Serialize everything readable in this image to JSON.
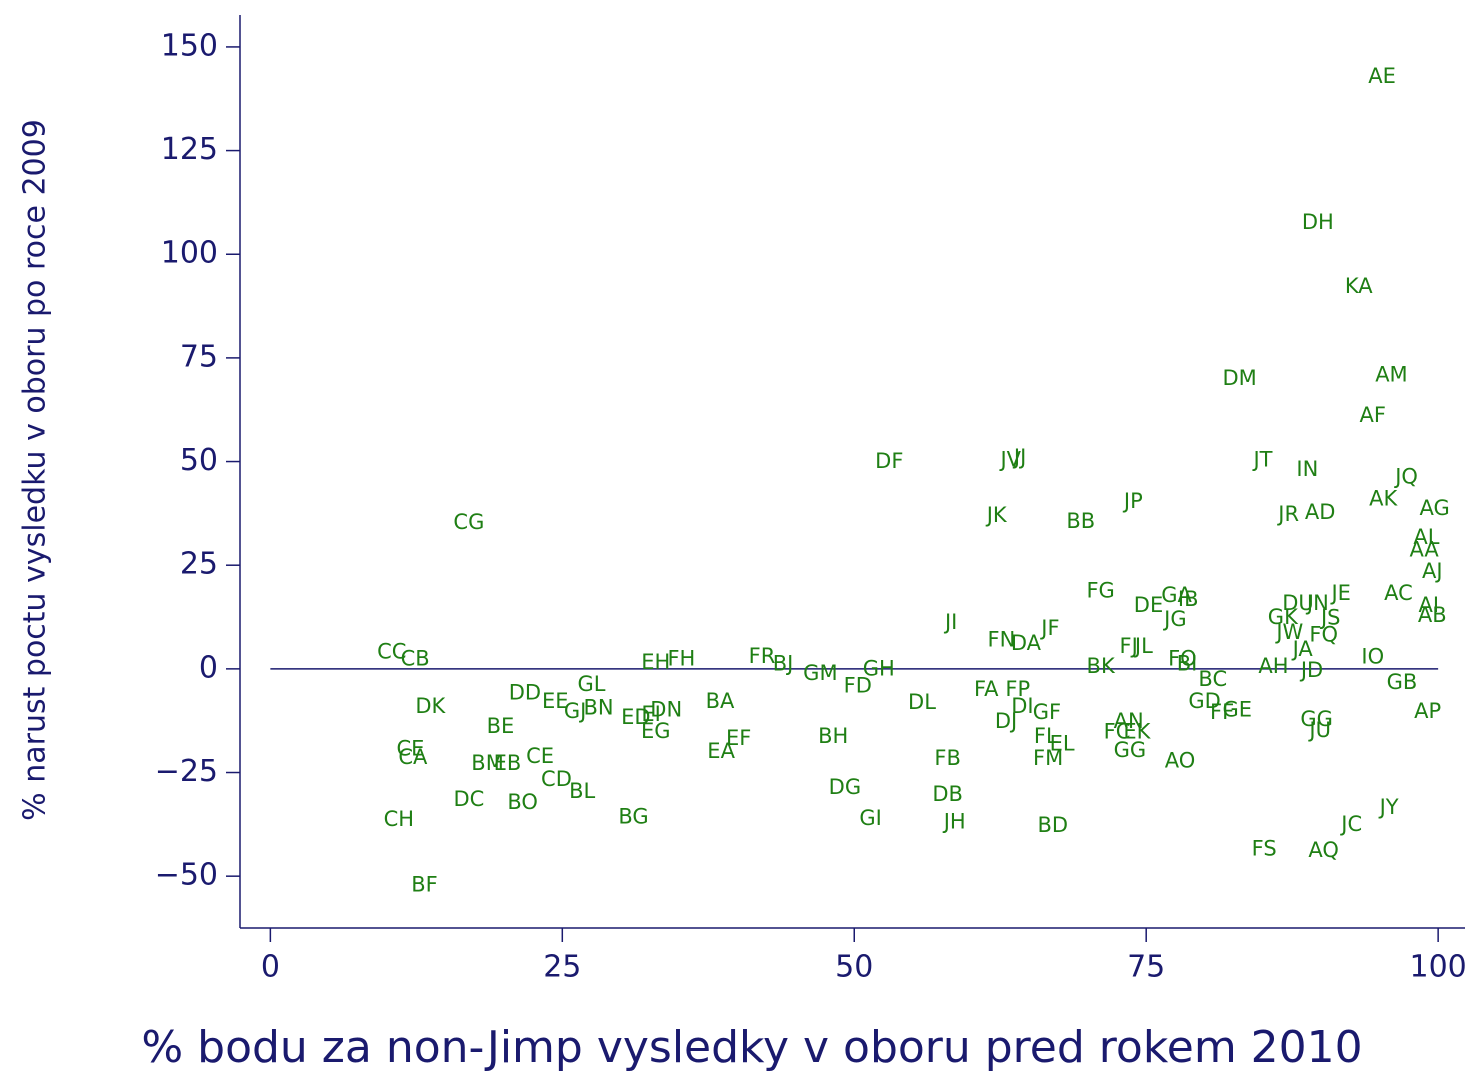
{
  "chart_data": {
    "type": "scatter",
    "x_label": "% bodu za non-Jimp vysledky v oboru pred rokem 2010",
    "y_label": "% narust poctu vysledku v oboru po roce 2009",
    "color": "#1f7f14",
    "hline": 0,
    "xlim": [
      -2.6,
      102.3
    ],
    "ylim": [
      -62.5,
      157.7
    ],
    "xticks": [
      0,
      25,
      50,
      75,
      100
    ],
    "yticks": [
      {
        "value": -50,
        "label": "−50"
      },
      {
        "value": -25,
        "label": "−25"
      },
      0,
      25,
      50,
      75,
      100,
      125,
      150
    ],
    "labels": [
      "AE",
      "DH",
      "KA",
      "DM",
      "AM",
      "AF",
      "DF",
      "JV",
      "JJ",
      "JT",
      "IN",
      "JQ",
      "AK",
      "JP",
      "AG",
      "JK",
      "BB",
      "JR",
      "AD",
      "CG",
      "AL",
      "AA",
      "AJ",
      "FG",
      "GA",
      "IB",
      "DE",
      "JE",
      "AC",
      "AI",
      "AB",
      "DU",
      "JN",
      "JS",
      "GK",
      "JW",
      "FQ",
      "JA",
      "JD",
      "AH",
      "IO",
      "GB",
      "AP",
      "GG",
      "JU",
      "JG",
      "JI",
      "JF",
      "FN",
      "DA",
      "FJ",
      "JL",
      "CC",
      "CB",
      "EH",
      "FH",
      "FR",
      "BJ",
      "GM",
      "GH",
      "FD",
      "BK",
      "FO",
      "BI",
      "BC",
      "FA",
      "FP",
      "DI",
      "GF",
      "DJ",
      "GD",
      "FF",
      "GE",
      "AN",
      "FC",
      "EK",
      "GG",
      "AO",
      "FL",
      "EL",
      "FM",
      "FB",
      "DB",
      "JH",
      "BD",
      "DL",
      "BH",
      "DG",
      "GI",
      "BA",
      "EF",
      "EA",
      "BG",
      "ED",
      "EI",
      "DN",
      "EG",
      "GL",
      "GJ",
      "BN",
      "DD",
      "EE",
      "DK",
      "BE",
      "CE",
      "CA",
      "BM",
      "EB",
      "CE",
      "CD",
      "BL",
      "DC",
      "BO",
      "CH",
      "BF",
      "FS",
      "AQ",
      "JC",
      "JY"
    ],
    "x": [
      95.2,
      89.7,
      93.2,
      83.0,
      96.0,
      94.4,
      53.0,
      63.4,
      64.2,
      85.0,
      88.8,
      97.3,
      95.3,
      73.9,
      99.7,
      62.2,
      69.4,
      87.2,
      89.9,
      17.0,
      99.0,
      98.8,
      99.5,
      71.1,
      77.6,
      78.6,
      75.2,
      91.7,
      96.6,
      99.2,
      99.5,
      88.0,
      89.7,
      90.8,
      86.7,
      87.3,
      90.2,
      88.4,
      89.2,
      85.9,
      94.4,
      96.9,
      99.1,
      89.6,
      89.9,
      77.5,
      58.3,
      66.8,
      62.6,
      64.7,
      73.5,
      74.8,
      10.4,
      12.4,
      33.0,
      35.2,
      42.1,
      43.9,
      47.1,
      52.1,
      50.3,
      71.1,
      78.1,
      78.5,
      80.7,
      61.3,
      64.0,
      64.4,
      66.5,
      63.0,
      80.0,
      81.5,
      82.8,
      73.5,
      72.5,
      74.2,
      73.6,
      77.9,
      66.4,
      67.8,
      66.6,
      58.0,
      58.0,
      58.6,
      67.0,
      55.8,
      48.2,
      49.2,
      51.4,
      38.5,
      40.1,
      38.6,
      31.1,
      31.3,
      32.6,
      33.9,
      33.0,
      27.5,
      26.1,
      28.1,
      21.8,
      24.4,
      13.7,
      19.7,
      12.0,
      12.2,
      18.6,
      20.3,
      23.1,
      24.5,
      26.7,
      17.0,
      21.6,
      11.0,
      13.2,
      85.1,
      90.2,
      92.6,
      95.8
    ],
    "y": [
      142.8,
      107.5,
      92.1,
      69.9,
      70.7,
      61.0,
      49.9,
      50.2,
      50.9,
      50.2,
      48.0,
      46.1,
      40.8,
      40.3,
      38.6,
      36.9,
      35.4,
      37.1,
      37.6,
      35.2,
      31.6,
      28.5,
      23.4,
      18.6,
      17.6,
      16.6,
      15.2,
      18.1,
      18.1,
      15.2,
      12.8,
      15.7,
      15.7,
      12.1,
      12.3,
      8.7,
      8.0,
      4.6,
      -0.5,
      0.5,
      2.7,
      -3.4,
      -10.4,
      -12.3,
      -15.0,
      11.8,
      11.1,
      9.6,
      6.8,
      6.0,
      5.3,
      5.3,
      3.9,
      2.2,
      1.4,
      2.2,
      2.9,
      1.0,
      -1.2,
      -0.2,
      -4.3,
      0.5,
      2.2,
      1.0,
      -2.7,
      -5.1,
      -5.1,
      -9.2,
      -10.6,
      -12.8,
      -8.0,
      -10.6,
      -10.1,
      -12.8,
      -15.4,
      -15.4,
      -19.8,
      -22.4,
      -16.4,
      -18.3,
      -21.7,
      -21.7,
      -30.4,
      -37.1,
      -37.9,
      -8.2,
      -16.4,
      -28.7,
      -36.2,
      -8.0,
      -16.9,
      -20.0,
      -35.9,
      -11.8,
      -11.1,
      -10.1,
      -15.2,
      -3.9,
      -10.4,
      -9.6,
      -6.0,
      -8.0,
      -9.2,
      -14.0,
      -19.5,
      -21.5,
      -22.9,
      -22.9,
      -21.2,
      -26.8,
      -29.7,
      -31.6,
      -32.3,
      -36.4,
      -52.3,
      -43.6,
      -43.9,
      -37.6,
      -33.5
    ]
  }
}
